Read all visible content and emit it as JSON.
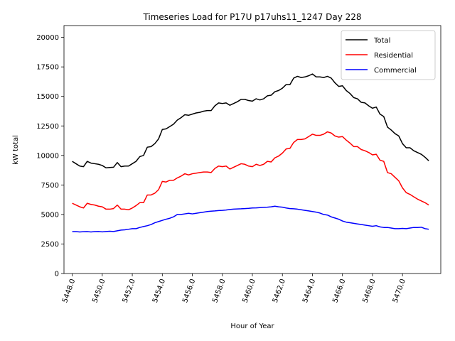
{
  "chart_data": {
    "type": "line",
    "title": "Timeseries Load for P17U p17uhs11_1247  Day 228",
    "xlabel": "Hour of Year",
    "ylabel": "kW total",
    "xlim": [
      5447.45,
      5472.55
    ],
    "ylim": [
      0,
      21000
    ],
    "x_ticks": [
      5448.0,
      5450.0,
      5452.0,
      5454.0,
      5456.0,
      5458.0,
      5460.0,
      5462.0,
      5464.0,
      5466.0,
      5468.0,
      5470.0
    ],
    "x_tick_labels": [
      "5448.0",
      "5450.0",
      "5452.0",
      "5454.0",
      "5456.0",
      "5458.0",
      "5460.0",
      "5462.0",
      "5464.0",
      "5466.0",
      "5468.0",
      "5470.0"
    ],
    "y_ticks": [
      0,
      2500,
      5000,
      7500,
      10000,
      12500,
      15000,
      17500,
      20000
    ],
    "y_tick_labels": [
      "0",
      "2500",
      "5000",
      "7500",
      "10000",
      "12500",
      "15000",
      "17500",
      "20000"
    ],
    "legend_position": "top-right",
    "x_start": 5448.0,
    "x_step": 0.25,
    "series": [
      {
        "name": "Total",
        "color": "#000000",
        "values": [
          9500,
          9300,
          9100,
          9050,
          9500,
          9350,
          9300,
          9250,
          9150,
          8950,
          8980,
          9000,
          9400,
          9050,
          9100,
          9100,
          9300,
          9500,
          9900,
          10000,
          10700,
          10750,
          11000,
          11400,
          12200,
          12250,
          12450,
          12650,
          13000,
          13200,
          13450,
          13400,
          13500,
          13600,
          13650,
          13750,
          13800,
          13800,
          14200,
          14450,
          14400,
          14450,
          14250,
          14400,
          14550,
          14750,
          14750,
          14650,
          14600,
          14800,
          14700,
          14800,
          15050,
          15100,
          15400,
          15500,
          15700,
          16000,
          16000,
          16550,
          16700,
          16600,
          16650,
          16750,
          16900,
          16650,
          16650,
          16600,
          16700,
          16550,
          16150,
          15850,
          15900,
          15500,
          15250,
          14900,
          14800,
          14500,
          14450,
          14200,
          14000,
          14100,
          13500,
          13300,
          12400,
          12150,
          11850,
          11650,
          11000,
          10650,
          10650,
          10400,
          10250,
          10100,
          9850,
          9550
        ]
      },
      {
        "name": "Residential",
        "color": "#ff0000",
        "values": [
          5950,
          5800,
          5650,
          5550,
          5950,
          5850,
          5800,
          5700,
          5650,
          5450,
          5450,
          5500,
          5800,
          5450,
          5450,
          5400,
          5550,
          5750,
          6000,
          6000,
          6650,
          6650,
          6800,
          7100,
          7800,
          7750,
          7900,
          7900,
          8100,
          8250,
          8450,
          8350,
          8450,
          8500,
          8550,
          8600,
          8600,
          8550,
          8900,
          9100,
          9050,
          9100,
          8850,
          9000,
          9150,
          9300,
          9250,
          9100,
          9050,
          9250,
          9150,
          9250,
          9500,
          9450,
          9800,
          9950,
          10200,
          10550,
          10600,
          11100,
          11350,
          11350,
          11400,
          11600,
          11800,
          11700,
          11700,
          11800,
          12000,
          11900,
          11650,
          11550,
          11600,
          11300,
          11050,
          10750,
          10750,
          10500,
          10400,
          10250,
          10050,
          10100,
          9600,
          9500,
          8550,
          8450,
          8150,
          7850,
          7250,
          6850,
          6700,
          6500,
          6300,
          6150,
          6000,
          5800
        ]
      },
      {
        "name": "Commercial",
        "color": "#0000ff",
        "values": [
          3550,
          3550,
          3520,
          3540,
          3550,
          3520,
          3550,
          3560,
          3530,
          3560,
          3580,
          3560,
          3620,
          3680,
          3700,
          3750,
          3800,
          3800,
          3900,
          3980,
          4050,
          4150,
          4300,
          4400,
          4500,
          4600,
          4680,
          4800,
          5000,
          5000,
          5050,
          5100,
          5050,
          5100,
          5150,
          5200,
          5250,
          5280,
          5300,
          5330,
          5350,
          5380,
          5420,
          5450,
          5470,
          5480,
          5500,
          5520,
          5550,
          5560,
          5580,
          5600,
          5620,
          5650,
          5700,
          5650,
          5620,
          5550,
          5500,
          5480,
          5450,
          5400,
          5350,
          5300,
          5250,
          5200,
          5120,
          5000,
          4950,
          4800,
          4700,
          4600,
          4450,
          4350,
          4300,
          4250,
          4200,
          4150,
          4100,
          4050,
          4000,
          4050,
          3950,
          3900,
          3900,
          3850,
          3800,
          3800,
          3820,
          3800,
          3850,
          3900,
          3900,
          3920,
          3800,
          3750
        ]
      }
    ]
  }
}
